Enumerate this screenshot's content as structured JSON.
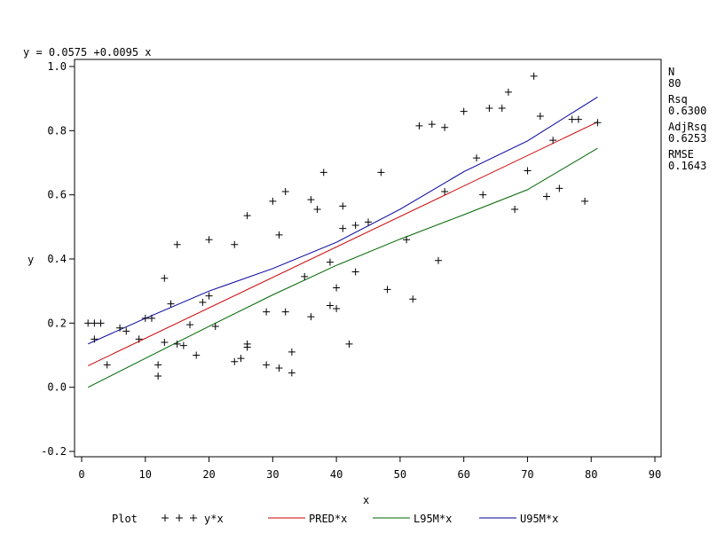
{
  "chart_data": {
    "type": "scatter",
    "title": "y = 0.0575 +0.0095 x",
    "xlabel": "x",
    "ylabel": "y",
    "xlim": [
      0,
      90
    ],
    "ylim": [
      -0.2,
      1.0
    ],
    "x_ticks": [
      "0",
      "10",
      "20",
      "30",
      "40",
      "50",
      "60",
      "70",
      "80",
      "90"
    ],
    "y_ticks": [
      "-0.2",
      "0.0",
      "0.2",
      "0.4",
      "0.6",
      "0.8",
      "1.0"
    ],
    "grid": false,
    "legend_position": "bottom",
    "legend_title": "Plot",
    "stats": [
      {
        "label": "N",
        "value": "80"
      },
      {
        "label": "Rsq",
        "value": "0.6300"
      },
      {
        "label": "AdjRsq",
        "value": "0.6253"
      },
      {
        "label": "RMSE",
        "value": "0.1643"
      }
    ],
    "scatter": {
      "name": "y*x",
      "color": "#000000",
      "points": [
        [
          1,
          0.2
        ],
        [
          2,
          0.2
        ],
        [
          3,
          0.2
        ],
        [
          2,
          0.15
        ],
        [
          4,
          0.07
        ],
        [
          6,
          0.185
        ],
        [
          7,
          0.175
        ],
        [
          9,
          0.15
        ],
        [
          10,
          0.215
        ],
        [
          11,
          0.215
        ],
        [
          12,
          0.035
        ],
        [
          12,
          0.07
        ],
        [
          13,
          0.14
        ],
        [
          13,
          0.34
        ],
        [
          14,
          0.26
        ],
        [
          15,
          0.445
        ],
        [
          15,
          0.135
        ],
        [
          16,
          0.13
        ],
        [
          17,
          0.195
        ],
        [
          18,
          0.1
        ],
        [
          19,
          0.265
        ],
        [
          20,
          0.285
        ],
        [
          20,
          0.46
        ],
        [
          21,
          0.19
        ],
        [
          24,
          0.445
        ],
        [
          24,
          0.08
        ],
        [
          25,
          0.09
        ],
        [
          26,
          0.125
        ],
        [
          26,
          0.135
        ],
        [
          26,
          0.535
        ],
        [
          29,
          0.235
        ],
        [
          29,
          0.07
        ],
        [
          30,
          0.58
        ],
        [
          31,
          0.06
        ],
        [
          31,
          0.475
        ],
        [
          32,
          0.61
        ],
        [
          32,
          0.235
        ],
        [
          33,
          0.045
        ],
        [
          33,
          0.11
        ],
        [
          35,
          0.345
        ],
        [
          36,
          0.585
        ],
        [
          36,
          0.22
        ],
        [
          37,
          0.555
        ],
        [
          38,
          0.67
        ],
        [
          39,
          0.255
        ],
        [
          39,
          0.39
        ],
        [
          40,
          0.245
        ],
        [
          40,
          0.31
        ],
        [
          41,
          0.495
        ],
        [
          41,
          0.565
        ],
        [
          42,
          0.135
        ],
        [
          43,
          0.505
        ],
        [
          43,
          0.36
        ],
        [
          45,
          0.515
        ],
        [
          47,
          0.67
        ],
        [
          48,
          0.305
        ],
        [
          51,
          0.46
        ],
        [
          52,
          0.275
        ],
        [
          53,
          0.815
        ],
        [
          55,
          0.82
        ],
        [
          56,
          0.395
        ],
        [
          57,
          0.61
        ],
        [
          57,
          0.81
        ],
        [
          60,
          0.86
        ],
        [
          62,
          0.715
        ],
        [
          63,
          0.6
        ],
        [
          64,
          0.87
        ],
        [
          66,
          0.87
        ],
        [
          67,
          0.92
        ],
        [
          68,
          0.555
        ],
        [
          70,
          0.675
        ],
        [
          71,
          0.97
        ],
        [
          72,
          0.845
        ],
        [
          73,
          0.595
        ],
        [
          74,
          0.77
        ],
        [
          75,
          0.62
        ],
        [
          77,
          0.835
        ],
        [
          78,
          0.835
        ],
        [
          79,
          0.58
        ],
        [
          81,
          0.825
        ]
      ]
    },
    "lines": [
      {
        "name": "PRED*x",
        "color": "#cc0000",
        "x": [
          1,
          81
        ],
        "y": [
          0.067,
          0.827
        ]
      },
      {
        "name": "L95M*x",
        "color": "#006600",
        "x": [
          1,
          10,
          20,
          30,
          40,
          50,
          60,
          70,
          81
        ],
        "y": [
          0.0,
          0.09,
          0.19,
          0.288,
          0.38,
          0.462,
          0.538,
          0.616,
          0.745
        ]
      },
      {
        "name": "U95M*x",
        "color": "#000099",
        "x": [
          1,
          10,
          20,
          30,
          40,
          50,
          60,
          70,
          81
        ],
        "y": [
          0.135,
          0.215,
          0.3,
          0.37,
          0.452,
          0.555,
          0.672,
          0.768,
          0.905
        ]
      }
    ]
  }
}
